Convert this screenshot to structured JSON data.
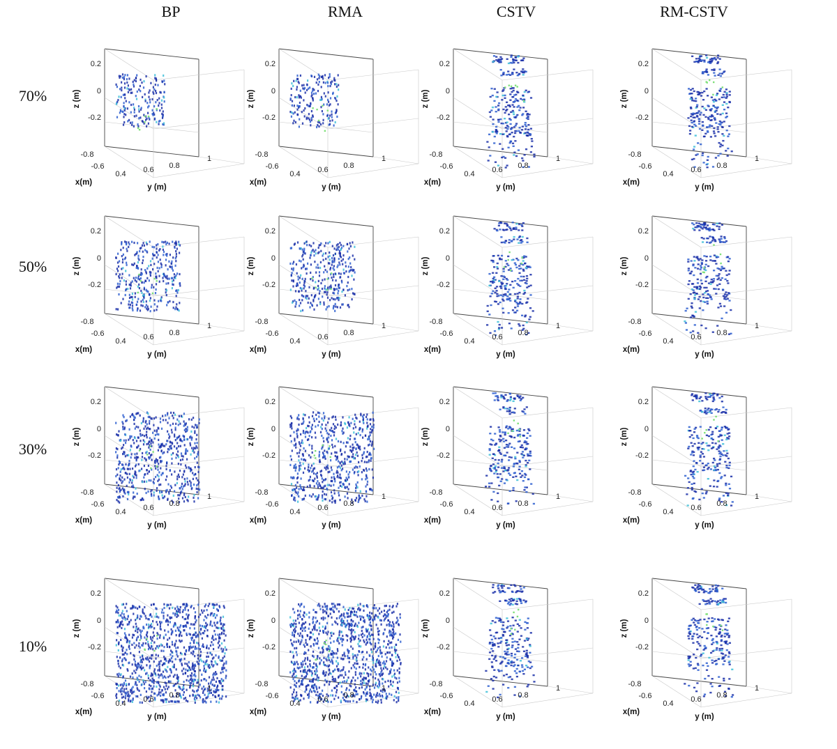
{
  "figure": {
    "columns": [
      "BP",
      "RMA",
      "CSTV",
      "RM-CSTV"
    ],
    "rows": [
      "70%",
      "50%",
      "30%",
      "10%"
    ],
    "axes": {
      "z_label": "z (m)",
      "x_label": "x(m)",
      "y_label": "y (m)",
      "z_ticks": [
        "0.2",
        "0",
        "-0.2"
      ],
      "x_ticks": [
        "-0.8",
        "-0.6"
      ],
      "y_ticks": [
        "0.4",
        "0.6",
        "0.8",
        "1"
      ]
    },
    "colors": {
      "volume_dark": "#1a2fa8",
      "volume_mid": "#2e5fd0",
      "volume_light": "#3fc0d8",
      "hot": "#7fe07a",
      "grid": "#c8c8c8",
      "axis": "#444444"
    }
  }
}
